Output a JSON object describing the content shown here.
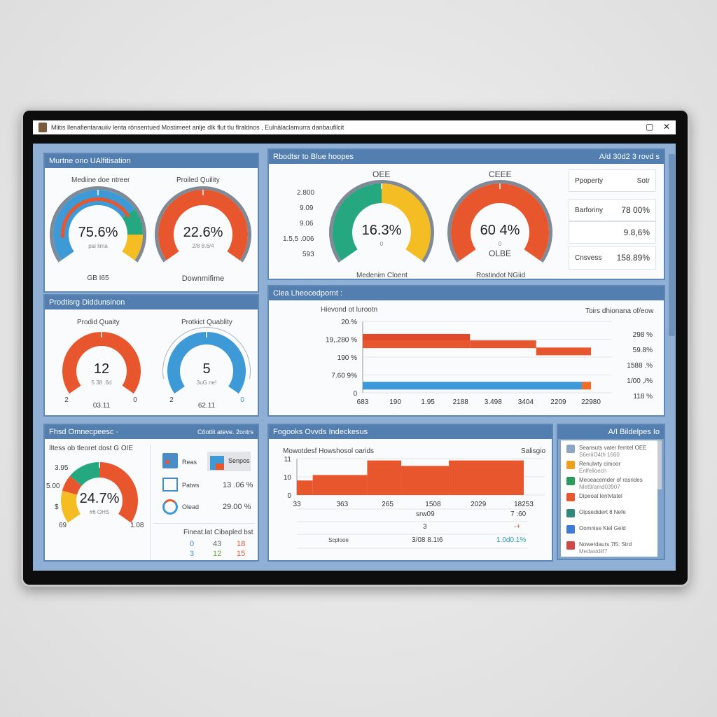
{
  "window": {
    "title": "Mlitis llenafientarauiiv lenta rönsentued Mostimeet anlje dlk flut tlu flraldnos , Eulnälaclamurra danbaufilcit",
    "maximize_icon": "maximize-icon",
    "close_icon": "close-icon"
  },
  "colors": {
    "header": "#527fb0",
    "background": "#8fb0d4",
    "orange": "#e8562e",
    "blue": "#3e9ad6",
    "green": "#25a77f",
    "yellow": "#f5bd24",
    "gray": "#808a96"
  },
  "panel1": {
    "title": "Murtne ono UAlfitisation",
    "gauge_a": {
      "label": "Mediine doe ntreer",
      "value": "75.6%",
      "sub": "pai lima",
      "footer": "GB I65",
      "segments": [
        {
          "from": 0,
          "to": 0.72,
          "color": "#3e9ad6"
        },
        {
          "from": 0.72,
          "to": 0.86,
          "color": "#25a77f"
        },
        {
          "from": 0.86,
          "to": 1,
          "color": "#f5bd24"
        }
      ]
    },
    "gauge_b": {
      "label": "Proiled Quility",
      "value": "22.6%",
      "sub": "2/8 8.6/4",
      "footer": "Downmifime",
      "segments": [
        {
          "from": 0,
          "to": 1,
          "color": "#e8562e"
        }
      ]
    }
  },
  "panel2": {
    "title": "Prodtisrg Diddunsinon",
    "gauge_a": {
      "label": "Prodid Quaity",
      "value": "12",
      "sub": "5 38 .6d",
      "min": "2",
      "max": "0",
      "footer": "03.11",
      "segments": [
        {
          "from": 0,
          "to": 1,
          "color": "#e8562e"
        }
      ]
    },
    "gauge_b": {
      "label": "Protkict Quablity",
      "value": "5",
      "sub": "3uG ne!",
      "min": "2",
      "max": "0",
      "footer": "62.11",
      "segments": [
        {
          "from": 0,
          "to": 1,
          "color": "#3e9ad6"
        }
      ]
    }
  },
  "panel3": {
    "title": "Rbodtsr to Blue hoopes",
    "meta": "A/d 30d2 3 rovd s",
    "scale": [
      "2.800",
      "9.09",
      "9.06",
      "1.5,5 .006",
      "593"
    ],
    "gauge_a": {
      "label": "OEE",
      "value": "16.3%",
      "sub": "0",
      "footer": "Medenim Cloent",
      "segments": [
        {
          "from": 0,
          "to": 0.5,
          "color": "#25a77f"
        },
        {
          "from": 0.5,
          "to": 1,
          "color": "#f5bd24"
        }
      ]
    },
    "gauge_b": {
      "label": "CEEE",
      "value": "60 4%",
      "sub": "0",
      "inner": "OLBE",
      "footer": "Rostindot NGiid",
      "segments": [
        {
          "from": 0,
          "to": 1,
          "color": "#e8562e"
        }
      ]
    },
    "table": [
      {
        "k": "Ppoperty",
        "v": "Sotr"
      },
      {
        "k": "Barforiny",
        "v": "78 00%"
      },
      {
        "k": "",
        "v": "9.8,6%"
      },
      {
        "k": "Cnsvess",
        "v": "158.89%"
      }
    ]
  },
  "panel4": {
    "title": "Clea Lheocedpornt :"
  },
  "chart_data": [
    {
      "type": "bar",
      "title": "Hievond ot lurootn",
      "legend_title": "Toirs dhionana of/eow",
      "yticks": [
        "20.%",
        "19,.280 %",
        "190 %",
        "7.60 9%",
        "0"
      ],
      "xticks": [
        "683",
        "190",
        "1.95",
        "2188",
        "3.498",
        "3404",
        "2209",
        "22980"
      ],
      "right_labels": [
        "298 %",
        "59.8%",
        "1588 .%",
        "1/00 ,/%",
        "118 %"
      ],
      "series": [
        {
          "color": "#e04a2a",
          "steps": [
            [
              0,
              0.47,
              0.77
            ]
          ]
        },
        {
          "color": "#e8562e",
          "steps": [
            [
              0,
              0.47,
              0.68
            ],
            [
              0.47,
              0.76,
              0.68
            ],
            [
              0.76,
              1,
              0.58
            ]
          ]
        },
        {
          "color": "#3e9ad6",
          "steps": [
            [
              0,
              0.96,
              0.1
            ]
          ]
        },
        {
          "color": "#f06a2a",
          "steps": [
            [
              0.96,
              1,
              0.1
            ]
          ]
        }
      ]
    },
    {
      "type": "area",
      "title": "Mowotdesf Howshosol oarids",
      "legend_title": "Salisgio",
      "yticks": [
        "11",
        "10",
        "0"
      ],
      "xticks": [
        "33",
        "363",
        "265",
        "1508",
        "2029",
        "18253"
      ],
      "series": [
        {
          "color": "#e8562e",
          "steps": [
            [
              0,
              0.07,
              0.4
            ],
            [
              0.07,
              0.31,
              0.55
            ],
            [
              0.31,
              0.46,
              0.95
            ],
            [
              0.46,
              0.67,
              0.8
            ],
            [
              0.67,
              1,
              0.95
            ]
          ]
        }
      ]
    }
  ],
  "panel5": {
    "title": "Fhsd Omnecpeesc ·",
    "meta": "Côotlit ateve. 2ontrs",
    "subtitle": "Iltess ob tleoret dost G OIE",
    "gauge": {
      "value": "24.7%",
      "sub": "#6 OHS",
      "scale": [
        "3.95",
        "5.00",
        "$",
        "69",
        "1.08"
      ],
      "segments": [
        {
          "from": 0,
          "to": 0.2,
          "color": "#f5bd24"
        },
        {
          "from": 0.2,
          "to": 0.3,
          "color": "#e8562e"
        },
        {
          "from": 0.3,
          "to": 0.5,
          "color": "#25a77f"
        },
        {
          "from": 0.5,
          "to": 1,
          "color": "#e8562e"
        }
      ]
    },
    "legend": [
      {
        "icon": "line-chart-icon",
        "label": "Reas",
        "value": ""
      },
      {
        "icon": "square-icon",
        "label": "Patws",
        "value": "13 .06 %"
      },
      {
        "icon": "donut-icon",
        "label": "Olead",
        "value": "29.00 %"
      }
    ],
    "chip": "Senpos",
    "footer_title": "Fineat.lat Cibapled bst",
    "footer_rows": [
      [
        "0",
        "43",
        "18"
      ],
      [
        "3",
        "12",
        "15"
      ]
    ]
  },
  "panel6": {
    "title": "Fogooks Ovvds Indeckesus",
    "rows": [
      {
        "a": "",
        "b": "srw09",
        "c": "7 :60"
      },
      {
        "a": "",
        "b": "3",
        "c": "-+"
      },
      {
        "a": "Scplooe",
        "b": "3/08 8.1t6",
        "c": "1.0d0.1%"
      }
    ]
  },
  "panel7": {
    "title": "A/I Bildelpes Io",
    "items": [
      {
        "icon": "calendar-grid-icon",
        "l1": "Seansuts vater femtel OEE",
        "l2": "S6eriiO4th 1660",
        "color": "#8aa6c4"
      },
      {
        "icon": "machine-icon",
        "l1": "Renulwty cimoor",
        "l2": "Enlfelloech",
        "color": "#f0a020"
      },
      {
        "icon": "tree-icon",
        "l1": "Meoeacemder of rasrides",
        "l2": "Nlet9/amd03907",
        "color": "#2b9b5c"
      },
      {
        "icon": "shield-icon",
        "l1": "Dipeoat lentvtatel",
        "l2": "",
        "color": "#e8562e"
      },
      {
        "icon": "globe-icon",
        "l1": "Olpsedidert 8 Nefe",
        "l2": "",
        "color": "#2f8a7a"
      },
      {
        "icon": "people-icon",
        "l1": "Oomnise Kiel Geld",
        "l2": "",
        "color": "#3e7ad6"
      },
      {
        "icon": "calendar-icon",
        "l1": "Nowerdaurs 7l5: Strd",
        "l2": "Medasidiif7",
        "color": "#d04848"
      }
    ]
  }
}
